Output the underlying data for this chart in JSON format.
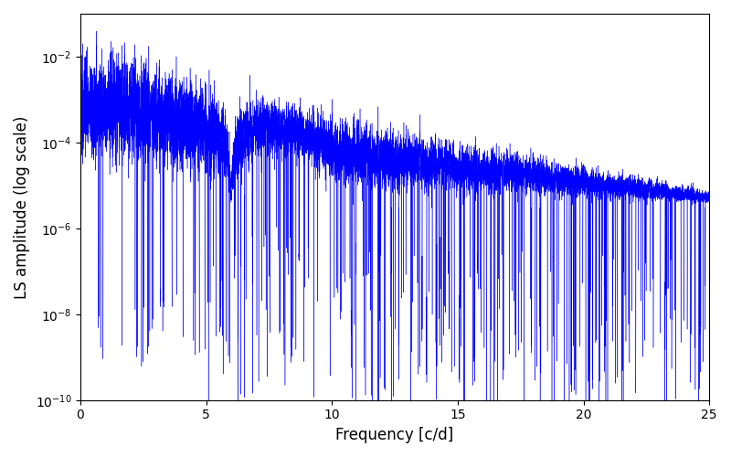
{
  "title": "",
  "xlabel": "Frequency [c/d]",
  "ylabel": "LS amplitude (log scale)",
  "line_color": "blue",
  "xlim": [
    0,
    25
  ],
  "ylim_log": [
    -10,
    -1
  ],
  "figsize": [
    8.0,
    5.0
  ],
  "dpi": 100,
  "seed": 12345,
  "n_points": 50000,
  "freq_max": 25.0,
  "background_color": "#ffffff"
}
